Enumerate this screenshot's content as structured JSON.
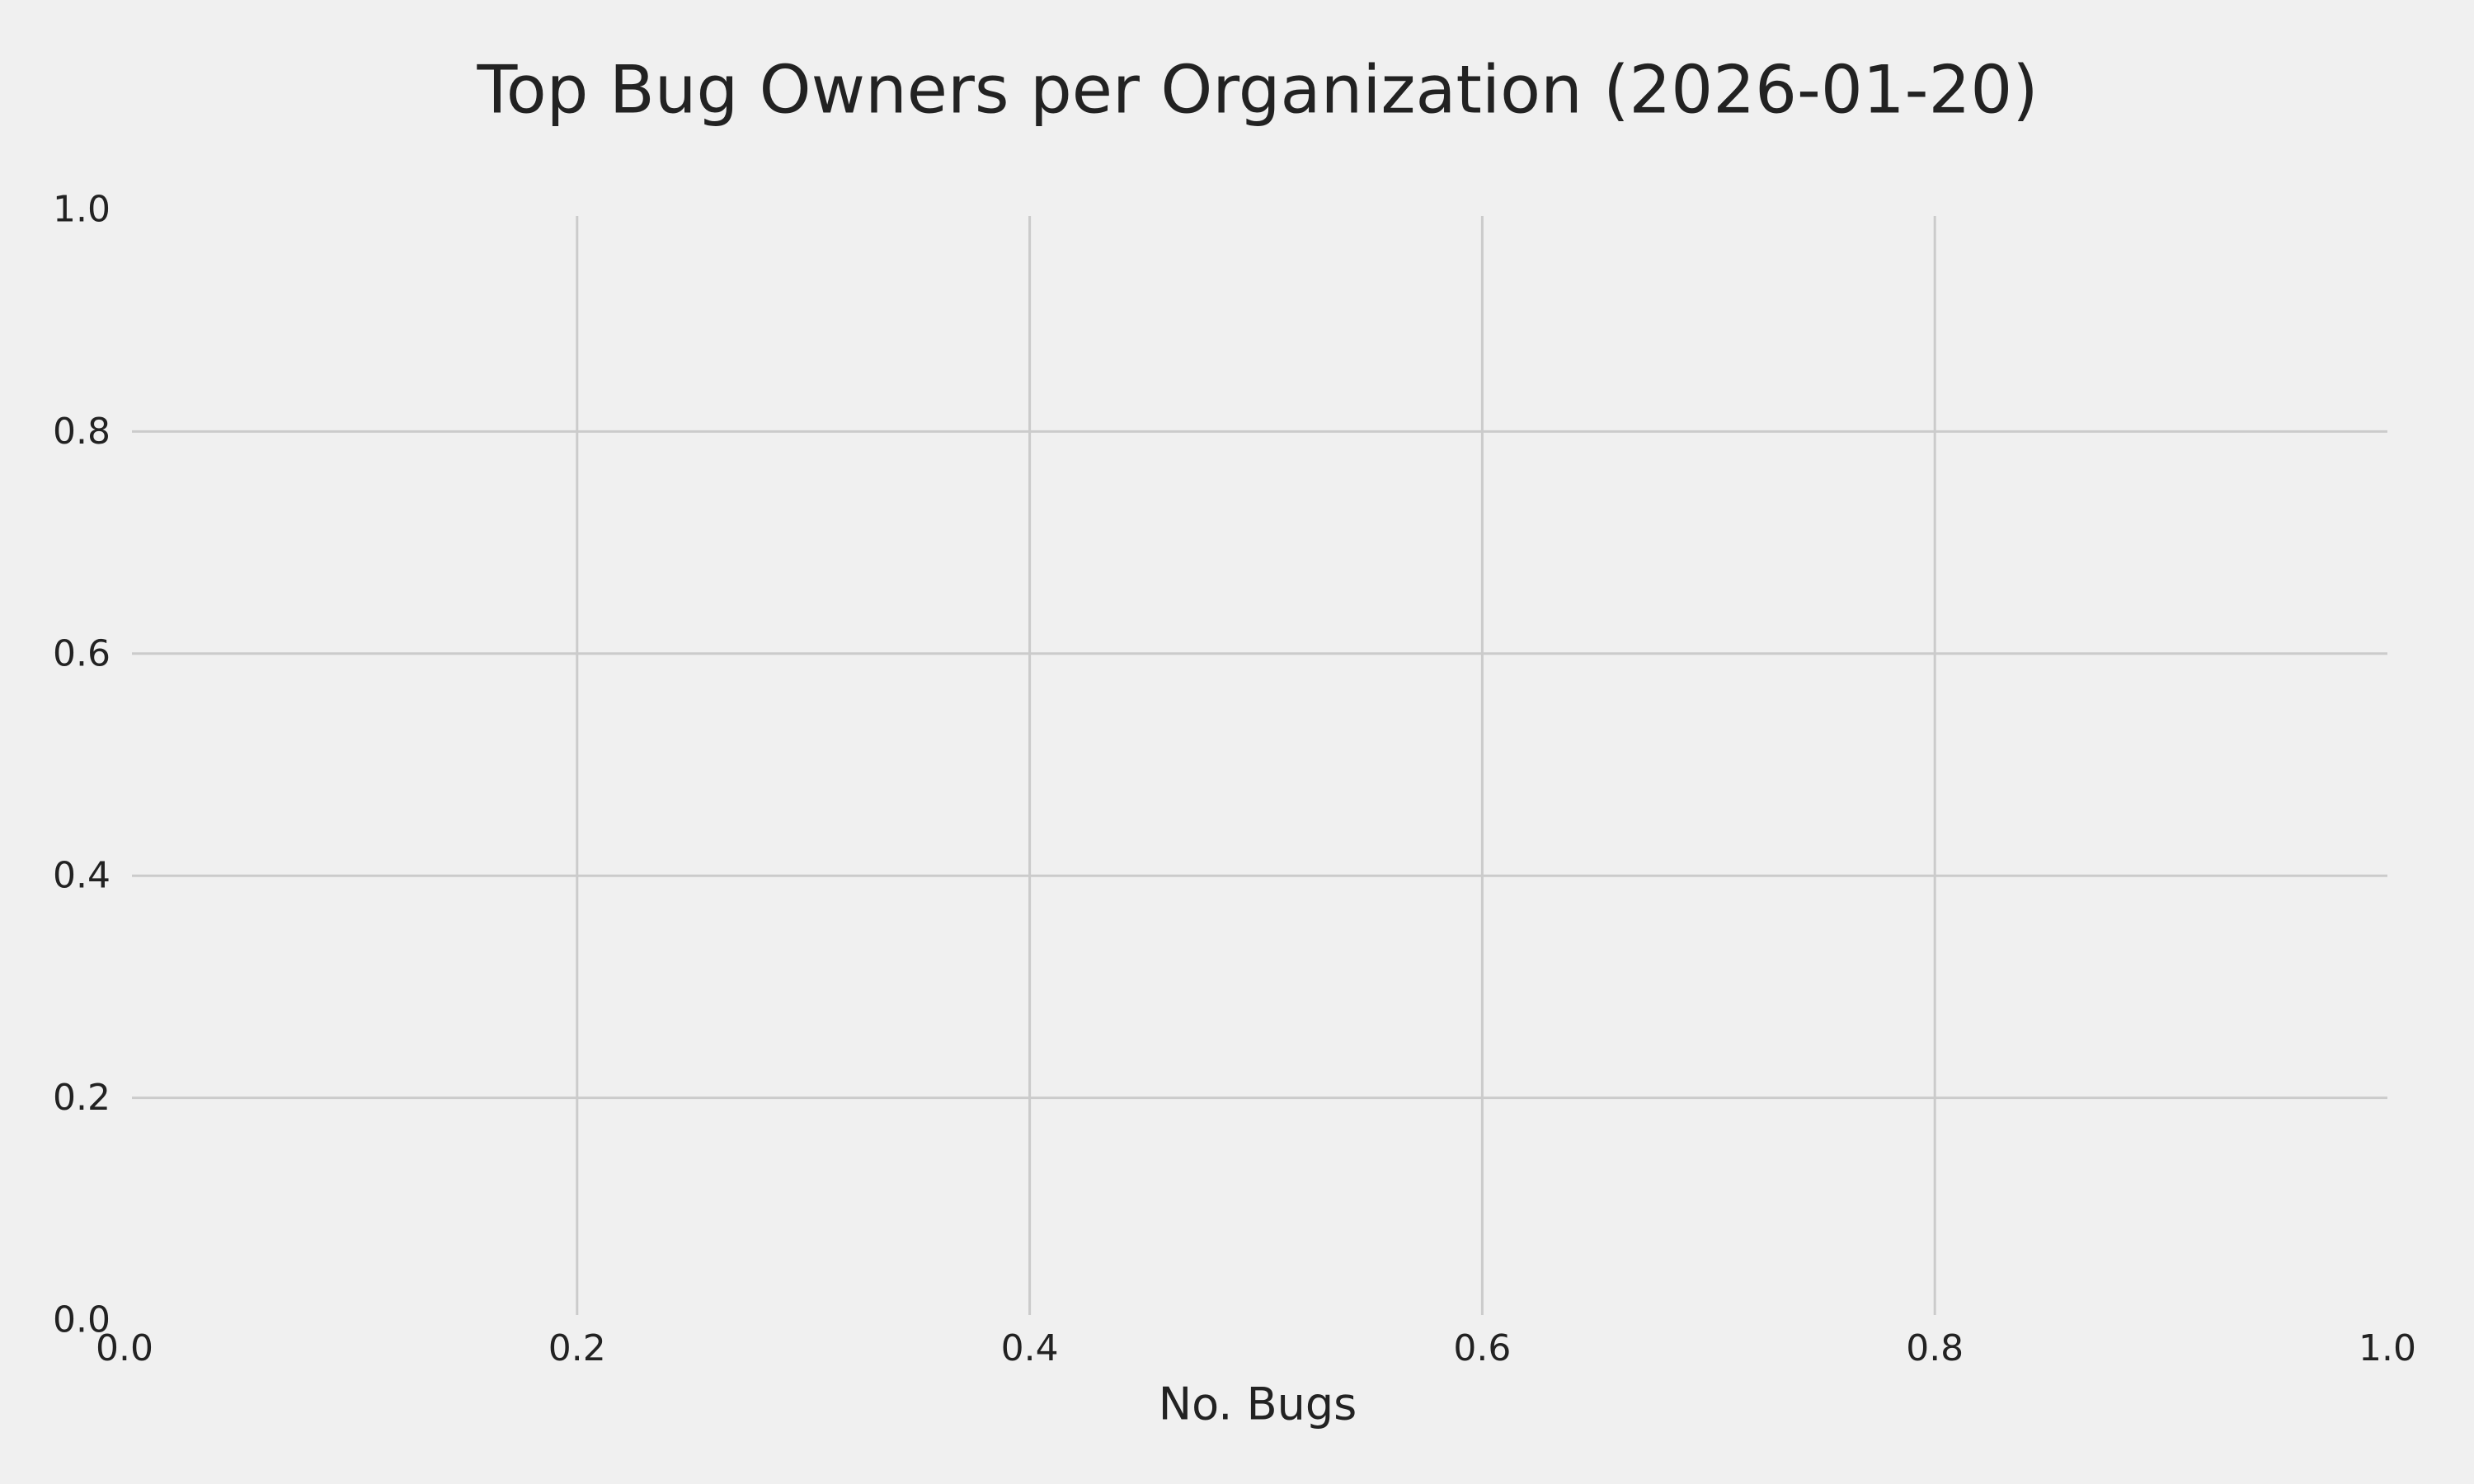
{
  "chart_data": {
    "type": "bar",
    "title": "Top Bug Owners per Organization (2026-01-20)",
    "xlabel": "No. Bugs",
    "ylabel": "",
    "xlim": [
      0,
      1
    ],
    "ylim": [
      0,
      1
    ],
    "xticks": [
      "0.0",
      "0.2",
      "0.4",
      "0.6",
      "0.8",
      "1.0"
    ],
    "yticks": [
      "0.0",
      "0.2",
      "0.4",
      "0.6",
      "0.8",
      "1.0"
    ],
    "categories": [],
    "values": [],
    "grid": true,
    "colors": {
      "background": "#f0f0f0",
      "grid": "#cbcbcb",
      "text": "#222222"
    }
  }
}
